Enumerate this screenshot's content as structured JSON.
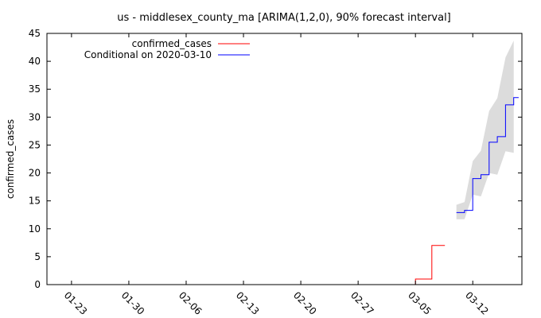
{
  "chart_data": {
    "type": "line",
    "title": "us - middlesex_county_ma [ARIMA(1,2,0), 90% forecast interval]",
    "ylabel": "confirmed_cases",
    "xlabel": "",
    "ylim": [
      0,
      45
    ],
    "xlim": [
      "2020-01-20",
      "2020-03-18"
    ],
    "grid": false,
    "legend_position": "top-left",
    "y_ticks": [
      "0",
      "5",
      "10",
      "15",
      "20",
      "25",
      "30",
      "35",
      "40",
      "45"
    ],
    "x_ticks": [
      {
        "date": "2020-01-23",
        "label": "01-23"
      },
      {
        "date": "2020-01-30",
        "label": "01-30"
      },
      {
        "date": "2020-02-06",
        "label": "02-06"
      },
      {
        "date": "2020-02-13",
        "label": "02-13"
      },
      {
        "date": "2020-02-20",
        "label": "02-20"
      },
      {
        "date": "2020-02-27",
        "label": "02-27"
      },
      {
        "date": "2020-03-05",
        "label": "03-05"
      },
      {
        "date": "2020-03-12",
        "label": "03-12"
      }
    ],
    "series": [
      {
        "name": "confirmed_cases",
        "color": "#ff0000",
        "x": [
          "2020-03-04",
          "2020-03-05",
          "2020-03-06",
          "2020-03-07",
          "2020-03-08"
        ],
        "values": [
          0,
          1,
          1,
          7,
          7
        ]
      },
      {
        "name": "Conditional on 2020-03-10",
        "color": "#0000ff",
        "x": [
          "2020-03-10",
          "2020-03-11",
          "2020-03-12",
          "2020-03-13",
          "2020-03-14",
          "2020-03-15",
          "2020-03-16",
          "2020-03-17"
        ],
        "values": [
          12.9,
          13.3,
          19.0,
          19.7,
          25.5,
          26.5,
          32.2,
          33.5
        ]
      }
    ],
    "interval": {
      "color": "#dcdcdc",
      "x": [
        "2020-03-10",
        "2020-03-11",
        "2020-03-12",
        "2020-03-13",
        "2020-03-14",
        "2020-03-15",
        "2020-03-16",
        "2020-03-17"
      ],
      "lower": [
        11.7,
        11.7,
        16.1,
        15.8,
        20.0,
        19.7,
        23.9,
        23.6
      ],
      "upper": [
        14.3,
        14.8,
        22.1,
        24.0,
        31.1,
        33.4,
        40.7,
        43.7
      ]
    }
  }
}
